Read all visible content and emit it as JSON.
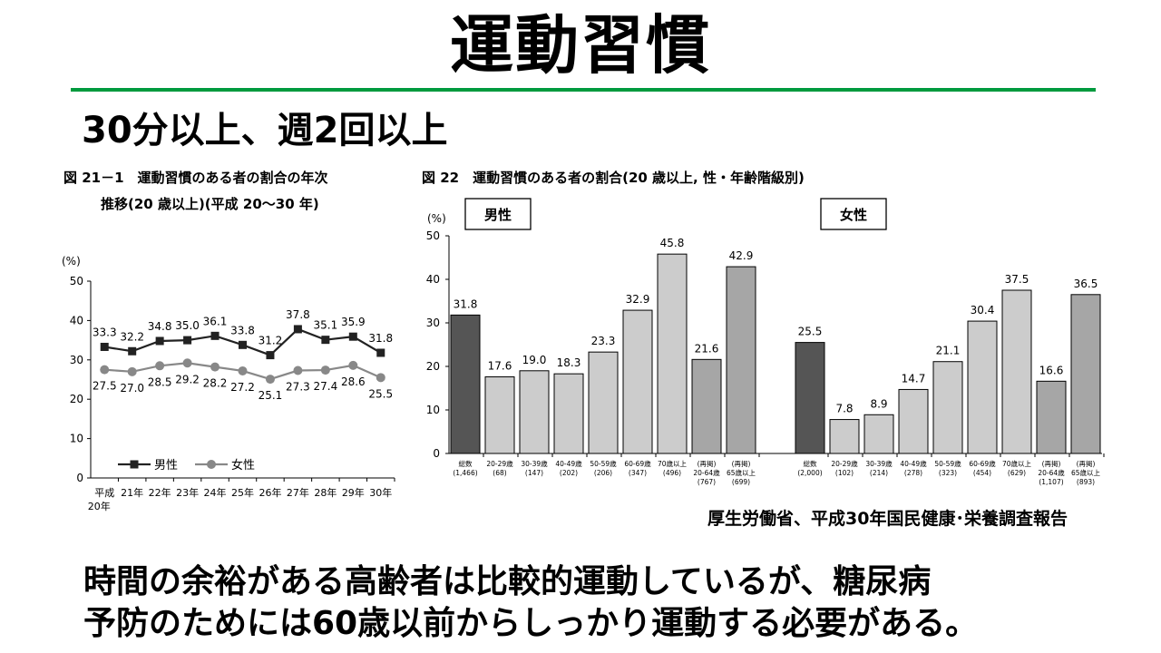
{
  "title": "運動習慣",
  "subtitle": "30分以上、週2回以上",
  "source": "厚生労働省、平成30年国民健康･栄養調査報告",
  "conclusion": [
    "時間の余裕がある高齢者は比較的運動しているが、糖尿病",
    "予防のためには60歳以前からしっかり運動する必要がある。"
  ],
  "colors": {
    "rule": "#009a3e",
    "male_line": "#222222",
    "female_line": "#888888",
    "bar_total": "#555555",
    "bar_age": "#cccccc",
    "bar_reprint": "#a6a6a6"
  },
  "chart_data": [
    {
      "type": "line",
      "title": "図 21－1　運動習慣のある者の割合の年次",
      "subtitle": "推移(20 歳以上)(平成 20～30 年)",
      "ylabel": "(%)",
      "ylim": [
        0,
        50
      ],
      "yticks": [
        0,
        10,
        20,
        30,
        40,
        50
      ],
      "categories": [
        [
          "平成",
          "20年"
        ],
        [
          "21年"
        ],
        [
          "22年"
        ],
        [
          "23年"
        ],
        [
          "24年"
        ],
        [
          "25年"
        ],
        [
          "26年"
        ],
        [
          "27年"
        ],
        [
          "28年"
        ],
        [
          "29年"
        ],
        [
          "30年"
        ]
      ],
      "legend_position": "bottom-left",
      "grid": false,
      "series": [
        {
          "name": "男性",
          "marker": "square",
          "values": [
            33.3,
            32.2,
            34.8,
            35.0,
            36.1,
            33.8,
            31.2,
            37.8,
            35.1,
            35.9,
            31.8
          ],
          "labels": [
            "33.3",
            "32.2",
            "34.8",
            "35.0",
            "36.1",
            "33.8",
            "31.2",
            "37.8",
            "35.1",
            "35.9",
            "31.8"
          ]
        },
        {
          "name": "女性",
          "marker": "circle",
          "values": [
            27.5,
            27.0,
            28.5,
            29.2,
            28.2,
            27.2,
            25.1,
            27.3,
            27.4,
            28.6,
            25.5
          ],
          "labels": [
            "27.5",
            "27.0",
            "28.5",
            "29.2",
            "28.2",
            "27.2",
            "25.1",
            "27.3",
            "27.4",
            "28.6",
            "25.5"
          ]
        }
      ]
    },
    {
      "type": "bar",
      "title": "図 22　運動習慣のある者の割合(20 歳以上, 性・年齢階級別)",
      "ylabel": "(%)",
      "ylim": [
        0,
        50
      ],
      "yticks": [
        0,
        10,
        20,
        30,
        40,
        50
      ],
      "grid": false,
      "groups": [
        {
          "name": "男性",
          "categories": [
            [
              "総数",
              "(1,466)"
            ],
            [
              "20-29歳",
              "(68)"
            ],
            [
              "30-39歳",
              "(147)"
            ],
            [
              "40-49歳",
              "(202)"
            ],
            [
              "50-59歳",
              "(206)"
            ],
            [
              "60-69歳",
              "(347)"
            ],
            [
              "70歳以上",
              "(496)"
            ],
            [
              "(再掲)",
              "20-64歳",
              "(767)"
            ],
            [
              "(再掲)",
              "65歳以上",
              "(699)"
            ]
          ],
          "kinds": [
            "total",
            "age",
            "age",
            "age",
            "age",
            "age",
            "age",
            "reprint",
            "reprint"
          ],
          "values": [
            31.8,
            17.6,
            19.0,
            18.3,
            23.3,
            32.9,
            45.8,
            21.6,
            42.9
          ],
          "labels": [
            "31.8",
            "17.6",
            "19.0",
            "18.3",
            "23.3",
            "32.9",
            "45.8",
            "21.6",
            "42.9"
          ]
        },
        {
          "name": "女性",
          "categories": [
            [
              "総数",
              "(2,000)"
            ],
            [
              "20-29歳",
              "(102)"
            ],
            [
              "30-39歳",
              "(214)"
            ],
            [
              "40-49歳",
              "(278)"
            ],
            [
              "50-59歳",
              "(323)"
            ],
            [
              "60-69歳",
              "(454)"
            ],
            [
              "70歳以上",
              "(629)"
            ],
            [
              "(再掲)",
              "20-64歳",
              "(1,107)"
            ],
            [
              "(再掲)",
              "65歳以上",
              "(893)"
            ]
          ],
          "kinds": [
            "total",
            "age",
            "age",
            "age",
            "age",
            "age",
            "age",
            "reprint",
            "reprint"
          ],
          "values": [
            25.5,
            7.8,
            8.9,
            14.7,
            21.1,
            30.4,
            37.5,
            16.6,
            36.5
          ],
          "labels": [
            "25.5",
            "7.8",
            "8.9",
            "14.7",
            "21.1",
            "30.4",
            "37.5",
            "16.6",
            "36.5"
          ]
        }
      ]
    }
  ]
}
